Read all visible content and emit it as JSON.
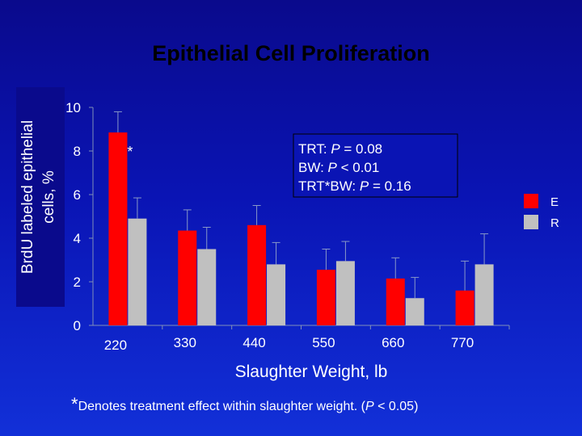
{
  "chart_data": {
    "type": "bar",
    "title": "Epithelial Cell Proliferation",
    "ylabel_lines": [
      "BrdU labeled epithelial",
      "cells, %"
    ],
    "xlabel": "Slaughter Weight, lb",
    "categories": [
      "220",
      "330",
      "440",
      "550",
      "660",
      "770"
    ],
    "ylim": [
      0,
      10
    ],
    "yticks": [
      0,
      2,
      4,
      6,
      8,
      10
    ],
    "series": [
      {
        "name": "E",
        "color": "#ff0000",
        "values": [
          8.85,
          4.35,
          4.6,
          2.55,
          2.15,
          1.6
        ],
        "error": [
          0.95,
          0.95,
          0.9,
          0.95,
          0.95,
          1.35
        ]
      },
      {
        "name": "R",
        "color": "#c0c0c0",
        "values": [
          4.9,
          3.5,
          2.8,
          2.95,
          1.25,
          2.8
        ],
        "error": [
          0.95,
          1.0,
          1.0,
          0.9,
          0.95,
          1.4
        ]
      }
    ],
    "significance_marker": {
      "category": "220",
      "text": "*"
    },
    "stats_box_lines": [
      [
        "TRT: ",
        "P",
        " = 0.08"
      ],
      [
        "BW: ",
        "P",
        " < 0.01"
      ],
      [
        "TRT*BW: ",
        "P",
        " = 0.16"
      ]
    ],
    "legend_placement": "right",
    "grid": false
  },
  "footnote": {
    "star": "*",
    "text": "Denotes treatment effect within slaughter weight.  (",
    "p": "P",
    "rest": " < 0.05)"
  }
}
